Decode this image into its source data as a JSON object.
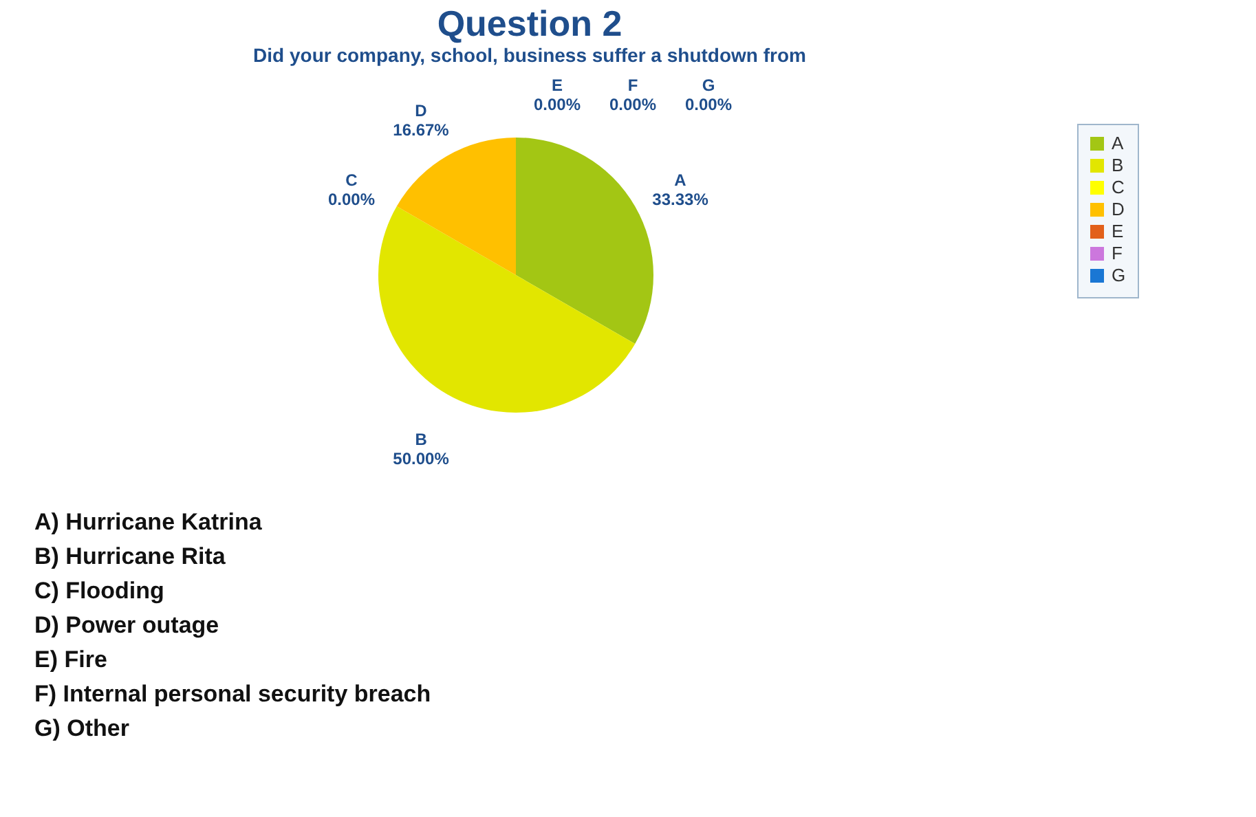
{
  "chart_data": {
    "type": "pie",
    "title": "Question 2",
    "subtitle": "Did your company, school, business suffer a shutdown from",
    "categories": [
      "A",
      "B",
      "C",
      "D",
      "E",
      "F",
      "G"
    ],
    "values": [
      33.33,
      50.0,
      0.0,
      16.67,
      0.0,
      0.0,
      0.0
    ],
    "colors": [
      "#a3c614",
      "#e2e600",
      "#ffff00",
      "#ffc000",
      "#e2601a",
      "#cc77dd",
      "#1a77d4"
    ],
    "value_labels": [
      "33.33%",
      "50.00%",
      "0.00%",
      "16.67%",
      "0.00%",
      "0.00%",
      "0.00%"
    ],
    "legend": "right",
    "annotations": [
      "A) Hurricane Katrina",
      "B) Hurricane Rita",
      "C) Flooding",
      "D) Power outage",
      "E) Fire",
      "F) Internal personal security breach",
      "G) Other"
    ]
  }
}
